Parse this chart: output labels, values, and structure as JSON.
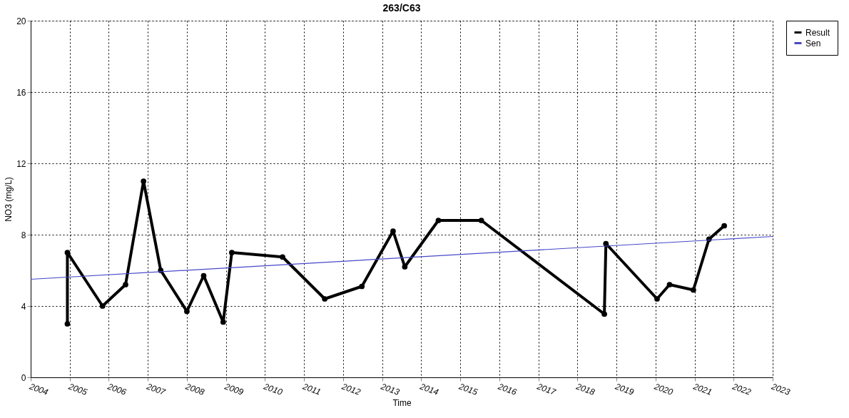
{
  "chart_data": {
    "type": "line",
    "title": "263/C63",
    "xlabel": "Time",
    "ylabel": "NO3 (mg/L)",
    "xlim": [
      2004,
      2023
    ],
    "xticks": [
      2004,
      2005,
      2006,
      2007,
      2008,
      2009,
      2010,
      2011,
      2012,
      2013,
      2014,
      2015,
      2016,
      2017,
      2018,
      2019,
      2020,
      2021,
      2022,
      2023
    ],
    "ylim": [
      0,
      20
    ],
    "yticks": [
      0,
      4,
      8,
      12,
      16,
      20
    ],
    "grid": true,
    "legend": "top right",
    "series": [
      {
        "name": "Result",
        "color": "#000000",
        "marker": "circle",
        "x": [
          2004.94,
          2004.94,
          2005.84,
          2006.43,
          2006.89,
          2007.33,
          2008.0,
          2008.43,
          2008.93,
          2009.15,
          2010.45,
          2011.53,
          2012.48,
          2013.28,
          2013.58,
          2014.44,
          2015.54,
          2018.69,
          2018.73,
          2020.04,
          2020.36,
          2020.97,
          2021.37,
          2021.76
        ],
        "values": [
          3.0,
          7.0,
          4.0,
          5.2,
          11.0,
          6.0,
          3.7,
          5.7,
          3.1,
          7.0,
          6.75,
          4.4,
          5.1,
          8.2,
          6.2,
          8.8,
          8.8,
          3.55,
          7.5,
          4.4,
          5.2,
          4.9,
          7.75,
          8.5
        ]
      },
      {
        "name": "Sen",
        "color": "#4848c8",
        "marker": "none",
        "x": [
          2004,
          2023
        ],
        "values": [
          5.5,
          7.9
        ]
      }
    ]
  }
}
